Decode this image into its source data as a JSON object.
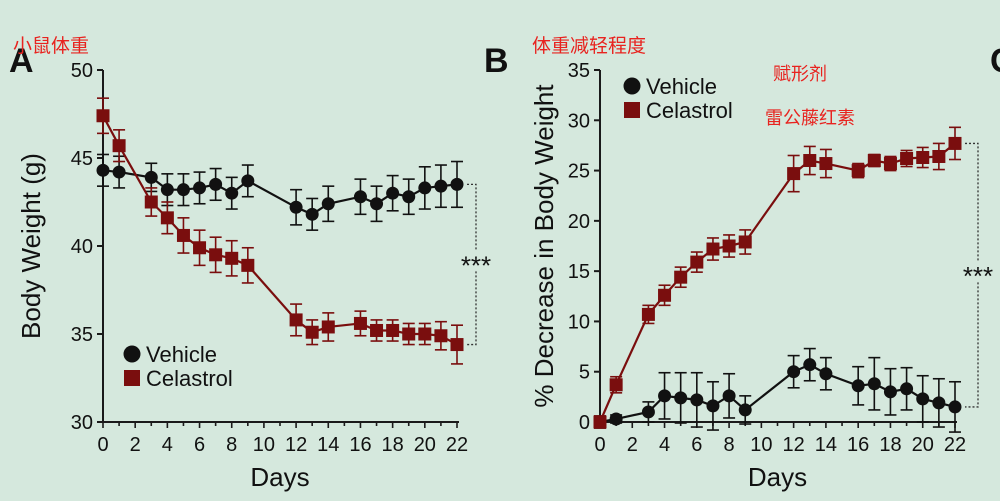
{
  "colors": {
    "background": "#d5e8dd",
    "vehicle": "#111111",
    "celastrol": "#7a0e0e",
    "annotation": "#e8231f",
    "axis": "#1a1a1a"
  },
  "annotations": {
    "a": "小鼠体重",
    "b": "体重减轻程度",
    "vehicle_cn": "赋形剂",
    "celastrol_cn": "雷公藤红素"
  },
  "chart_data": [
    {
      "panel": "A",
      "type": "line",
      "xlabel": "Days",
      "ylabel": "Body Weight (g)",
      "xlim": [
        0,
        22
      ],
      "ylim": [
        30,
        50
      ],
      "xticks": [
        "0",
        "2",
        "4",
        "6",
        "8",
        "10",
        "12",
        "14",
        "16",
        "18",
        "20",
        "22"
      ],
      "yticks": [
        "30",
        "35",
        "40",
        "45",
        "50"
      ],
      "legend_position": "bottom-left",
      "significance": "***",
      "grid": false,
      "series": [
        {
          "name": "Vehicle",
          "marker": "circle",
          "x": [
            0,
            1,
            3,
            4,
            5,
            6,
            7,
            8,
            9,
            12,
            13,
            14,
            16,
            17,
            18,
            19,
            20,
            21,
            22
          ],
          "y": [
            44.3,
            44.2,
            43.9,
            43.2,
            43.2,
            43.3,
            43.5,
            43.0,
            43.7,
            42.2,
            41.8,
            42.4,
            42.8,
            42.4,
            43.0,
            42.8,
            43.3,
            43.4,
            43.5
          ],
          "err": [
            0.9,
            0.9,
            0.8,
            0.9,
            0.9,
            0.9,
            0.9,
            0.9,
            0.9,
            1.0,
            0.9,
            1.0,
            1.0,
            1.0,
            1.0,
            1.0,
            1.2,
            1.2,
            1.3
          ]
        },
        {
          "name": "Celastrol",
          "marker": "square",
          "x": [
            0,
            1,
            3,
            4,
            5,
            6,
            7,
            8,
            9,
            12,
            13,
            14,
            16,
            17,
            18,
            19,
            20,
            21,
            22
          ],
          "y": [
            47.4,
            45.7,
            42.5,
            41.6,
            40.6,
            39.9,
            39.5,
            39.3,
            38.9,
            35.8,
            35.1,
            35.4,
            35.6,
            35.2,
            35.2,
            35.0,
            35.0,
            34.9,
            34.4
          ],
          "err": [
            1.0,
            0.9,
            0.8,
            0.9,
            1.0,
            1.0,
            1.0,
            1.0,
            1.0,
            0.9,
            0.7,
            0.8,
            0.7,
            0.6,
            0.6,
            0.6,
            0.6,
            0.8,
            1.1
          ]
        }
      ]
    },
    {
      "panel": "B",
      "type": "line",
      "xlabel": "Days",
      "ylabel": "% Decrease in Body Weight",
      "xlim": [
        0,
        22
      ],
      "ylim": [
        0,
        35
      ],
      "xticks": [
        "0",
        "2",
        "4",
        "6",
        "8",
        "10",
        "12",
        "14",
        "16",
        "18",
        "20",
        "22"
      ],
      "yticks": [
        "0",
        "5",
        "10",
        "15",
        "20",
        "25",
        "30",
        "35"
      ],
      "legend_position": "top-left",
      "significance": "***",
      "grid": false,
      "series": [
        {
          "name": "Vehicle",
          "marker": "circle",
          "x": [
            0,
            1,
            3,
            4,
            5,
            6,
            7,
            8,
            9,
            12,
            13,
            14,
            16,
            17,
            18,
            19,
            20,
            21,
            22
          ],
          "y": [
            0.0,
            0.3,
            1.0,
            2.6,
            2.4,
            2.2,
            1.6,
            2.6,
            1.2,
            5.0,
            5.7,
            4.8,
            3.6,
            3.8,
            3.0,
            3.3,
            2.3,
            1.9,
            1.5
          ],
          "err": [
            0.6,
            0.4,
            1.0,
            2.3,
            2.5,
            2.7,
            2.4,
            2.2,
            1.4,
            1.6,
            1.6,
            1.6,
            1.9,
            2.6,
            2.3,
            2.1,
            2.3,
            2.4,
            2.5
          ]
        },
        {
          "name": "Celastrol",
          "marker": "square",
          "x": [
            0,
            1,
            3,
            4,
            5,
            6,
            7,
            8,
            9,
            12,
            13,
            14,
            16,
            17,
            18,
            19,
            20,
            21,
            22
          ],
          "y": [
            0.0,
            3.7,
            10.7,
            12.6,
            14.4,
            15.9,
            17.2,
            17.5,
            17.9,
            24.7,
            26.0,
            25.7,
            25.0,
            26.0,
            25.7,
            26.2,
            26.3,
            26.4,
            27.7
          ],
          "err": [
            0.6,
            0.8,
            0.9,
            1.0,
            1.0,
            1.0,
            1.1,
            1.1,
            1.2,
            1.8,
            1.4,
            1.4,
            0.7,
            0.6,
            0.7,
            0.8,
            1.0,
            1.3,
            1.6
          ]
        }
      ]
    }
  ]
}
